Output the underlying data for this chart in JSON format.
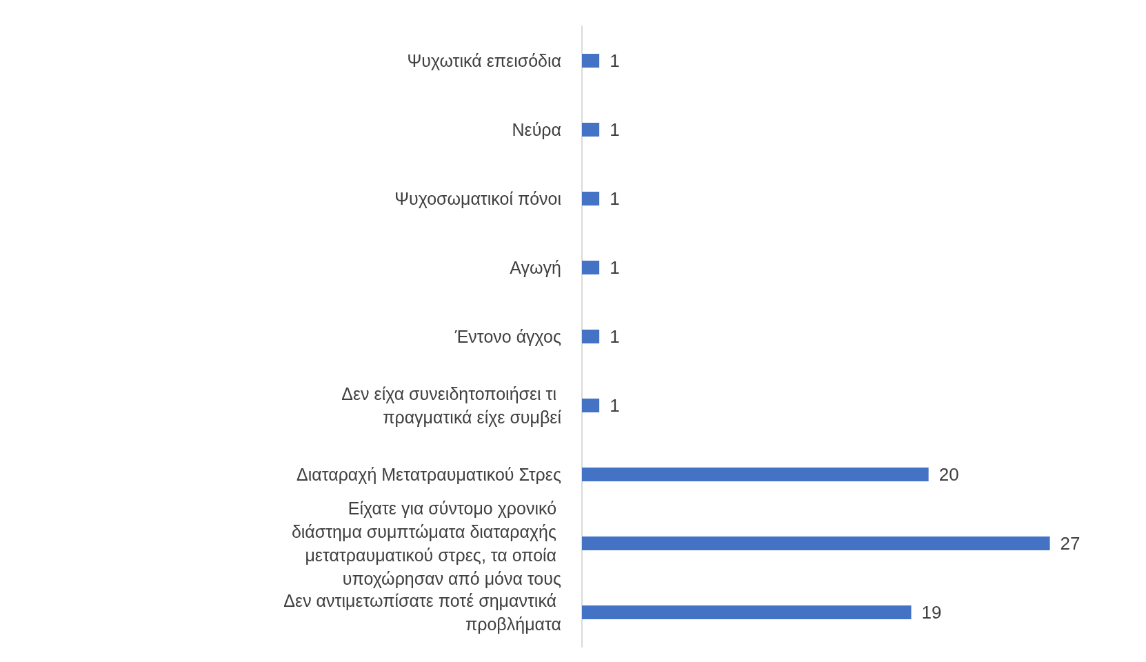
{
  "chart_data": {
    "type": "bar",
    "orientation": "horizontal",
    "categories": [
      "Ψυχωτικά επεισόδια",
      "Νεύρα",
      "Ψυχοσωματικοί πόνοι",
      "Αγωγή",
      "Έντονο άγχος",
      "Δεν είχα συνειδητοποιήσει τι πραγματικά είχε συμβεί",
      "Διαταραχή Μετατραυματικού Στρες",
      "Είχατε για σύντομο χρονικό διάστημα συμπτώματα διαταραχής μετατραυματικού στρες, τα οποία υποχώρησαν από μόνα τους",
      "Δεν αντιμετωπίσατε ποτέ σημαντικά προβλήματα"
    ],
    "values": [
      1,
      1,
      1,
      1,
      1,
      1,
      20,
      27,
      19
    ],
    "color": "#4472c4",
    "data_labels": true,
    "tick_labels": "y"
  }
}
